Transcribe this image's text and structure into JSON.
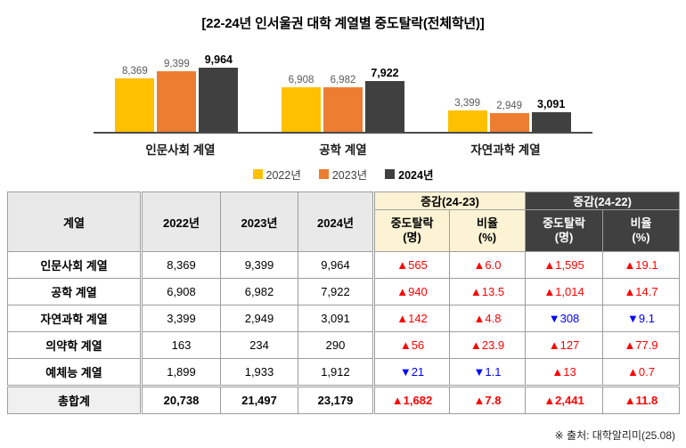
{
  "title": "[22-24년 인서울권 대학 계열별 중도탈락(전체학년)]",
  "source": "※ 출처: 대학알리미(25.08)",
  "colors": {
    "series_2022": "#FFC000",
    "series_2023": "#ED7D31",
    "series_2024": "#404040",
    "increase": "#FF0000",
    "decrease": "#0000FF",
    "header_gray": "#E9E9E9",
    "header_cream": "#FBF3D4",
    "header_dark": "#404040"
  },
  "chart_data": {
    "type": "bar",
    "title": "[22-24년 인서울권 대학 계열별 중도탈락(전체학년)]",
    "categories": [
      "인문사회 계열",
      "공학 계열",
      "자연과학 계열"
    ],
    "series": [
      {
        "name": "2022년",
        "color": "#FFC000",
        "values": [
          8369,
          6908,
          3399
        ]
      },
      {
        "name": "2023년",
        "color": "#ED7D31",
        "values": [
          9399,
          6982,
          2949
        ]
      },
      {
        "name": "2024년",
        "color": "#404040",
        "values": [
          9964,
          7922,
          3091
        ]
      }
    ],
    "value_labels": true,
    "legend_position": "bottom",
    "ylim": [
      0,
      10000
    ],
    "grid": false,
    "xlabel": "",
    "ylabel": ""
  },
  "table": {
    "headers": {
      "category": "계열",
      "years": [
        "2022년",
        "2023년",
        "2024년"
      ],
      "group1": "증감(24-23)",
      "group2": "증감(24-22)",
      "sub_count": "중도탈락\n(명)",
      "sub_rate": "비율\n(%)"
    },
    "rows": [
      {
        "category": "인문사회 계열",
        "values": [
          "8,369",
          "9,399",
          "9,964"
        ],
        "changes": [
          "▲565",
          "▲6.0",
          "▲1,595",
          "▲19.1"
        ]
      },
      {
        "category": "공학 계열",
        "values": [
          "6,908",
          "6,982",
          "7,922"
        ],
        "changes": [
          "▲940",
          "▲13.5",
          "▲1,014",
          "▲14.7"
        ]
      },
      {
        "category": "자연과학 계열",
        "values": [
          "3,399",
          "2,949",
          "3,091"
        ],
        "changes": [
          "▲142",
          "▲4.8",
          "▼308",
          "▼9.1"
        ]
      },
      {
        "category": "의약학 계열",
        "values": [
          "163",
          "234",
          "290"
        ],
        "changes": [
          "▲56",
          "▲23.9",
          "▲127",
          "▲77.9"
        ]
      },
      {
        "category": "예체능 계열",
        "values": [
          "1,899",
          "1,933",
          "1,912"
        ],
        "changes": [
          "▼21",
          "▼1.1",
          "▲13",
          "▲0.7"
        ]
      }
    ],
    "total": {
      "category": "총합계",
      "values": [
        "20,738",
        "21,497",
        "23,179"
      ],
      "changes": [
        "▲1,682",
        "▲7.8",
        "▲2,441",
        "▲11.8"
      ]
    }
  }
}
